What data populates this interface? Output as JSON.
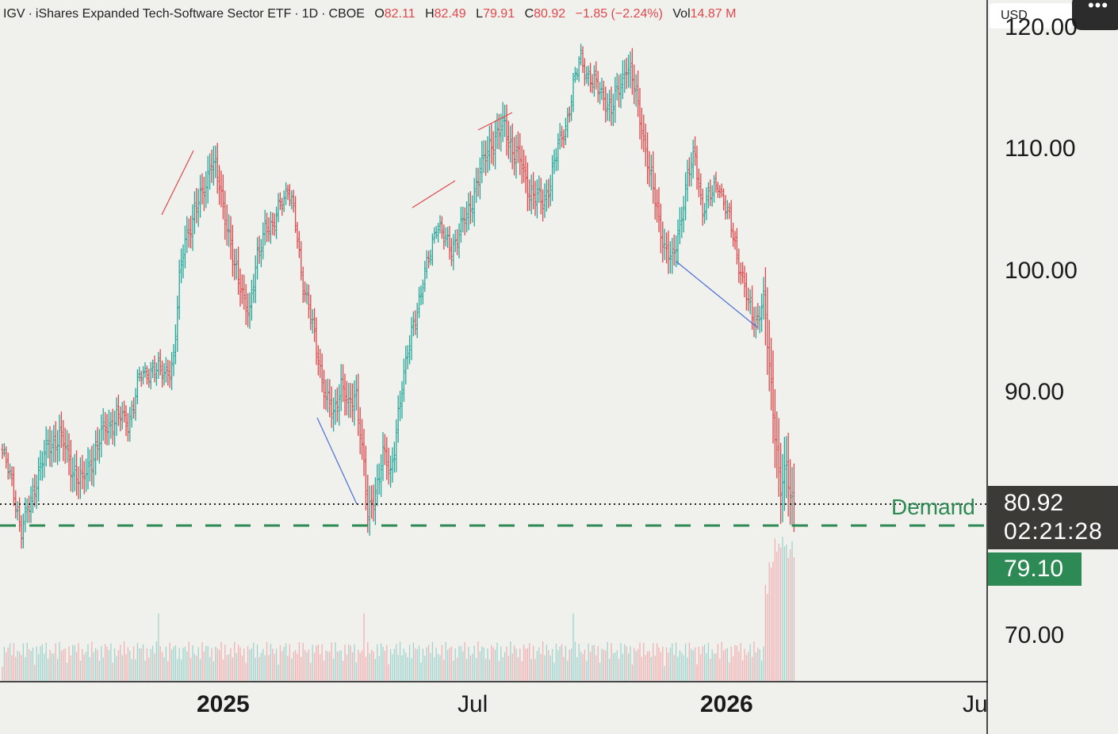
{
  "header": {
    "symbol": "IGV",
    "name": "iShares Expanded Tech-Software Sector ETF",
    "interval": "1D",
    "exchange": "CBOE",
    "open_label": "O",
    "open": "82.11",
    "high_label": "H",
    "high": "82.49",
    "low_label": "L",
    "low": "79.91",
    "close_label": "C",
    "close": "80.92",
    "change": "−1.85 (−2.24%)",
    "vol_label": "Vol",
    "volume": "14.87 M"
  },
  "toolbar": {
    "currency": "USD",
    "menu_icon": "more-icon"
  },
  "price_axis": {
    "labels": [
      "120.00",
      "110.00",
      "100.00",
      "90.00",
      "70.00"
    ]
  },
  "last_price": {
    "value": "80.92",
    "countdown": "02:21:28"
  },
  "demand": {
    "label": "Demand",
    "level": "79.10",
    "value": 79.1
  },
  "colors": {
    "up": "#26a69a",
    "down": "#e0484c",
    "demand": "#2e8a55",
    "trendline_up": "#e0484c",
    "trendline_down": "#4a6fd6",
    "background": "#f0f0ec"
  },
  "chart_data": {
    "type": "ohlc",
    "x_axis": {
      "labels": [
        "2025",
        "Jul",
        "2026",
        "Ju"
      ],
      "bold": [
        true,
        false,
        true,
        false
      ]
    },
    "y_axis": {
      "range": [
        66,
        121
      ],
      "labels": [
        110,
        100,
        90,
        70
      ]
    },
    "grid": false,
    "price_anchors": [
      [
        0,
        85
      ],
      [
        6,
        82
      ],
      [
        10,
        78.5
      ],
      [
        14,
        80.5
      ],
      [
        18,
        83
      ],
      [
        24,
        85.5
      ],
      [
        30,
        86.5
      ],
      [
        36,
        84
      ],
      [
        42,
        82.5
      ],
      [
        48,
        85
      ],
      [
        54,
        87
      ],
      [
        60,
        88
      ],
      [
        66,
        87.5
      ],
      [
        72,
        91
      ],
      [
        78,
        92
      ],
      [
        84,
        91.5
      ],
      [
        90,
        92.5
      ],
      [
        93,
        99
      ],
      [
        96,
        103
      ],
      [
        100,
        104
      ],
      [
        106,
        107
      ],
      [
        110,
        109
      ],
      [
        114,
        107
      ],
      [
        118,
        104
      ],
      [
        122,
        100
      ],
      [
        126,
        98.5
      ],
      [
        130,
        96.5
      ],
      [
        134,
        101
      ],
      [
        138,
        104
      ],
      [
        142,
        103
      ],
      [
        146,
        106
      ],
      [
        150,
        106.5
      ],
      [
        154,
        104
      ],
      [
        158,
        99
      ],
      [
        162,
        96
      ],
      [
        166,
        93
      ],
      [
        170,
        89.5
      ],
      [
        174,
        88
      ],
      [
        178,
        91
      ],
      [
        182,
        88.5
      ],
      [
        186,
        90
      ],
      [
        190,
        84
      ],
      [
        192,
        79.5
      ],
      [
        196,
        82
      ],
      [
        200,
        85
      ],
      [
        204,
        83
      ],
      [
        208,
        88.5
      ],
      [
        212,
        92
      ],
      [
        216,
        96
      ],
      [
        220,
        98
      ],
      [
        224,
        101
      ],
      [
        228,
        104
      ],
      [
        232,
        102.5
      ],
      [
        236,
        102
      ],
      [
        240,
        103
      ],
      [
        244,
        104.5
      ],
      [
        248,
        106.5
      ],
      [
        252,
        108.5
      ],
      [
        256,
        110.5
      ],
      [
        260,
        111
      ],
      [
        264,
        112
      ],
      [
        268,
        110
      ],
      [
        272,
        109
      ],
      [
        276,
        107
      ],
      [
        280,
        106
      ],
      [
        284,
        105.5
      ],
      [
        288,
        107.5
      ],
      [
        292,
        110
      ],
      [
        296,
        112
      ],
      [
        300,
        115
      ],
      [
        304,
        117.5
      ],
      [
        308,
        116
      ],
      [
        312,
        115
      ],
      [
        316,
        114.5
      ],
      [
        320,
        113
      ],
      [
        324,
        115
      ],
      [
        328,
        117
      ],
      [
        332,
        115
      ],
      [
        336,
        112
      ],
      [
        340,
        108
      ],
      [
        344,
        105
      ],
      [
        348,
        102
      ],
      [
        352,
        100.5
      ],
      [
        356,
        104
      ],
      [
        360,
        107.5
      ],
      [
        364,
        109.5
      ],
      [
        368,
        105
      ],
      [
        372,
        106
      ],
      [
        376,
        107.5
      ],
      [
        380,
        105
      ],
      [
        384,
        103
      ],
      [
        388,
        100
      ],
      [
        392,
        97
      ],
      [
        396,
        96
      ],
      [
        400,
        97.5
      ],
      [
        403,
        92
      ],
      [
        406,
        87
      ],
      [
        409,
        82
      ],
      [
        412,
        83.5
      ],
      [
        414,
        81.5
      ],
      [
        416,
        80.92
      ]
    ]
  }
}
